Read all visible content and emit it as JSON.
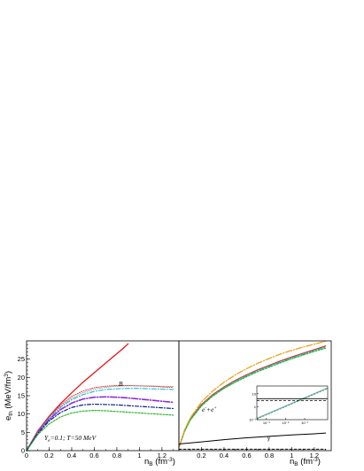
{
  "chart_data": [
    {
      "type": "line",
      "panel": "left",
      "ylabel": "e_th (MeV/fm³)",
      "xlabel": "n_B (fm⁻³)",
      "xlim": [
        0,
        1.35
      ],
      "ylim": [
        0,
        30
      ],
      "xticks": [
        "0",
        "0.2",
        "0.4",
        "0.6",
        "0.8",
        "1",
        "1.2"
      ],
      "yticks": [
        "0",
        "5",
        "10",
        "15",
        "20",
        "25"
      ],
      "annotations": [
        "B",
        "Y_e=0.1; T=50 MeV"
      ],
      "series": [
        {
          "color": "#e8141a",
          "dash": "solid",
          "width": 1.3,
          "x": [
            0,
            0.1,
            0.2,
            0.3,
            0.4,
            0.5,
            0.6,
            0.7,
            0.8,
            0.85,
            0.9
          ],
          "y": [
            0,
            5.4,
            9.4,
            12.8,
            15.8,
            18.7,
            21.3,
            23.9,
            26.5,
            27.8,
            29.2
          ]
        },
        {
          "color": "#e8141a",
          "dash": "1,1.5",
          "width": 0.9,
          "x": [
            0,
            0.1,
            0.2,
            0.3,
            0.4,
            0.5,
            0.6,
            0.7,
            0.8,
            0.9,
            1.0,
            1.1,
            1.2,
            1.3
          ],
          "y": [
            0,
            5.3,
            9.3,
            12.4,
            14.8,
            16.3,
            17.2,
            17.6,
            17.8,
            17.8,
            17.7,
            17.6,
            17.4,
            17.3
          ]
        },
        {
          "color": "#808080",
          "dash": "1,1.5",
          "width": 0.8,
          "x": [
            0,
            0.1,
            0.2,
            0.3,
            0.4,
            0.5,
            0.6,
            0.7,
            0.8,
            0.9,
            1.0,
            1.1,
            1.2,
            1.3
          ],
          "y": [
            0,
            5.2,
            9.1,
            12.0,
            14.3,
            15.8,
            16.8,
            17.3,
            17.6,
            17.7,
            17.7,
            17.7,
            17.6,
            17.5
          ]
        },
        {
          "color": "#22b8d6",
          "dash": "5,2,1,2",
          "width": 1.1,
          "x": [
            0,
            0.1,
            0.2,
            0.3,
            0.4,
            0.5,
            0.6,
            0.7,
            0.8,
            0.9,
            1.0,
            1.1,
            1.2,
            1.3
          ],
          "y": [
            0,
            5.1,
            8.9,
            11.8,
            13.9,
            15.3,
            16.2,
            16.7,
            16.9,
            17.0,
            17.0,
            16.9,
            16.8,
            16.7
          ]
        },
        {
          "color": "#8a2be2",
          "dash": "7,2,1,2",
          "width": 1.6,
          "x": [
            0,
            0.1,
            0.2,
            0.3,
            0.4,
            0.5,
            0.6,
            0.7,
            0.8,
            0.9,
            1.0,
            1.1,
            1.2,
            1.3
          ],
          "y": [
            0,
            4.9,
            8.5,
            11.2,
            13.0,
            14.1,
            14.6,
            14.7,
            14.6,
            14.4,
            14.1,
            13.8,
            13.5,
            13.2
          ]
        },
        {
          "color": "#0b1f8a",
          "dash": "4,2,1,2",
          "width": 1.2,
          "x": [
            0,
            0.1,
            0.2,
            0.3,
            0.4,
            0.5,
            0.6,
            0.7,
            0.8,
            0.9,
            1.0,
            1.1,
            1.2,
            1.3
          ],
          "y": [
            0,
            4.7,
            8.1,
            10.4,
            11.8,
            12.5,
            12.7,
            12.6,
            12.5,
            12.3,
            12.1,
            11.9,
            11.7,
            11.5
          ]
        },
        {
          "color": "#1ab51a",
          "dash": "2,1.5",
          "width": 1.1,
          "x": [
            0,
            0.1,
            0.2,
            0.3,
            0.4,
            0.5,
            0.6,
            0.7,
            0.8,
            0.9,
            1.0,
            1.1,
            1.2,
            1.3
          ],
          "y": [
            0,
            4.4,
            7.3,
            9.2,
            10.3,
            10.8,
            11.0,
            10.9,
            10.7,
            10.5,
            10.3,
            10.1,
            9.9,
            9.7
          ]
        }
      ]
    },
    {
      "type": "line",
      "panel": "right",
      "xlabel": "n_B (fm⁻³)",
      "xlim": [
        0,
        1.35
      ],
      "ylim": [
        0,
        30
      ],
      "xticks": [
        "0.2",
        "0.4",
        "0.6",
        "0.8",
        "1",
        "1.2"
      ],
      "annotations": [
        "e⁻+e⁺",
        "γ"
      ],
      "series": [
        {
          "color": "#e8141a",
          "dash": "solid",
          "width": 1.2,
          "x": [
            0.005,
            0.05,
            0.1,
            0.2,
            0.3,
            0.4,
            0.5,
            0.6,
            0.7,
            0.8,
            0.9,
            1.0,
            1.1,
            1.2,
            1.3
          ],
          "y": [
            1.2,
            5.5,
            8.6,
            12.6,
            15.3,
            17.4,
            19.2,
            20.7,
            22.1,
            23.3,
            24.5,
            25.6,
            26.6,
            27.6,
            28.6
          ]
        },
        {
          "color": "#808080",
          "dash": "1,1.5",
          "width": 0.8,
          "x": [
            0.005,
            0.05,
            0.1,
            0.2,
            0.3,
            0.4,
            0.5,
            0.6,
            0.7,
            0.8,
            0.9,
            1.0,
            1.1,
            1.2,
            1.3
          ],
          "y": [
            1.2,
            5.4,
            8.5,
            12.5,
            15.2,
            17.3,
            19.1,
            20.6,
            22.0,
            23.2,
            24.4,
            25.5,
            26.5,
            27.5,
            28.4
          ]
        },
        {
          "color": "#22b8d6",
          "dash": "5,2,1,2",
          "width": 1.1,
          "x": [
            0.005,
            0.05,
            0.1,
            0.2,
            0.3,
            0.4,
            0.5,
            0.6,
            0.7,
            0.8,
            0.9,
            1.0,
            1.1,
            1.2,
            1.3
          ],
          "y": [
            1.2,
            5.3,
            8.4,
            12.3,
            15.0,
            17.1,
            18.9,
            20.4,
            21.8,
            23.0,
            24.2,
            25.3,
            26.3,
            27.3,
            28.2
          ]
        },
        {
          "color": "#1ab51a",
          "dash": "2,1.5",
          "width": 1.1,
          "x": [
            0.005,
            0.05,
            0.1,
            0.2,
            0.3,
            0.4,
            0.5,
            0.6,
            0.7,
            0.8,
            0.9,
            1.0,
            1.1,
            1.2,
            1.3
          ],
          "y": [
            1.2,
            5.2,
            8.3,
            12.2,
            14.9,
            17.0,
            18.7,
            20.2,
            21.6,
            22.8,
            24.0,
            25.1,
            26.1,
            27.1,
            28.0
          ]
        },
        {
          "color": "#e8a31a",
          "dash": "7,2,1,2",
          "width": 1.3,
          "x": [
            0.005,
            0.05,
            0.1,
            0.2,
            0.3,
            0.4,
            0.5,
            0.6,
            0.7,
            0.8,
            0.9,
            1.0,
            1.1,
            1.2,
            1.3
          ],
          "y": [
            1.2,
            5.6,
            8.9,
            13.3,
            16.3,
            18.7,
            20.7,
            22.4,
            23.9,
            25.2,
            26.4,
            27.4,
            28.3,
            29.1,
            29.9
          ]
        },
        {
          "color": "#000000",
          "dash": "solid",
          "width": 1.0,
          "x": [
            0,
            0.2,
            0.4,
            0.6,
            0.8,
            1.0,
            1.2,
            1.3
          ],
          "y": [
            1.8,
            2.4,
            3.0,
            3.5,
            3.9,
            4.3,
            4.6,
            4.8
          ]
        },
        {
          "color": "#000000",
          "dash": "3,2",
          "width": 1.0,
          "x": [
            0,
            1.3
          ],
          "y": [
            0.4,
            0.4
          ]
        }
      ],
      "inset": {
        "scale": "log-log",
        "xlim": [
          -3.5,
          0.2
        ],
        "ylim": [
          -1,
          1.6
        ],
        "xticks": [
          "10⁻³",
          "10⁻²",
          "10⁻¹"
        ],
        "yticks": [
          "10⁻¹",
          "1",
          "10"
        ],
        "series": [
          {
            "color": "#8aa0d8",
            "dash": "solid",
            "width": 1.3,
            "x": [
              -3.5,
              0.2
            ],
            "y": [
              -0.9,
              1.45
            ]
          },
          {
            "color": "#1ab51a",
            "dash": "2,1.5",
            "width": 0.8,
            "x": [
              -3.5,
              0.2
            ],
            "y": [
              -0.95,
              1.4
            ]
          },
          {
            "color": "#000000",
            "dash": "solid",
            "width": 0.8,
            "x": [
              -3.5,
              0.2
            ],
            "y": [
              0.62,
              0.62
            ]
          },
          {
            "color": "#000000",
            "dash": "3,2",
            "width": 0.8,
            "x": [
              -3.5,
              0.2
            ],
            "y": [
              0.48,
              0.48
            ]
          }
        ]
      }
    }
  ]
}
